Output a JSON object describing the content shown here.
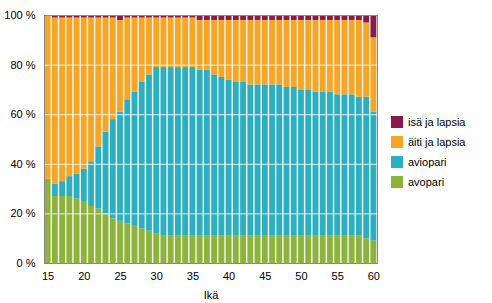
{
  "chart_data": {
    "type": "bar",
    "stacked": true,
    "xlabel": "Ikä",
    "x": [
      15,
      16,
      17,
      18,
      19,
      20,
      21,
      22,
      23,
      24,
      25,
      26,
      27,
      28,
      29,
      30,
      31,
      32,
      33,
      34,
      35,
      36,
      37,
      38,
      39,
      40,
      41,
      42,
      43,
      44,
      45,
      46,
      47,
      48,
      49,
      50,
      51,
      52,
      53,
      54,
      55,
      56,
      57,
      58,
      59,
      60
    ],
    "xlim": [
      14.5,
      60.5
    ],
    "xticks": [
      15,
      20,
      25,
      30,
      35,
      40,
      45,
      50,
      55,
      60
    ],
    "ylim": [
      0,
      100
    ],
    "yticks": [
      {
        "value": 0,
        "label": "0 %"
      },
      {
        "value": 20,
        "label": "20 %"
      },
      {
        "value": 40,
        "label": "40 %"
      },
      {
        "value": 60,
        "label": "60 %"
      },
      {
        "value": 80,
        "label": "80 %"
      },
      {
        "value": 100,
        "label": "100 %"
      }
    ],
    "grid": true,
    "legend": "right",
    "series": [
      {
        "name": "avopari",
        "color": "#8db33a",
        "values": [
          34,
          27,
          27,
          27,
          26,
          25,
          23,
          22,
          20,
          18,
          17,
          16,
          15,
          14,
          13,
          12,
          11,
          11,
          11,
          11,
          11,
          11,
          11,
          11,
          11,
          11,
          11,
          11,
          11,
          11,
          11,
          11,
          11,
          11,
          11,
          11,
          11,
          11,
          11,
          11,
          11,
          11,
          11,
          11,
          10,
          9
        ]
      },
      {
        "name": "aviopari",
        "color": "#2ab0c0",
        "values": [
          0,
          5,
          6,
          8,
          10,
          13,
          18,
          25,
          33,
          40,
          44,
          50,
          54,
          59,
          63,
          67,
          68,
          68,
          68,
          68,
          68,
          67,
          67,
          65,
          64,
          63,
          62,
          62,
          61,
          61,
          61,
          61,
          61,
          60,
          60,
          59,
          59,
          58,
          58,
          58,
          57,
          57,
          57,
          56,
          57,
          52
        ]
      },
      {
        "name": "äiti ja lapsia",
        "color": "#f5a623",
        "values": [
          66,
          67,
          66,
          64,
          63,
          61,
          58,
          52,
          46,
          41,
          37,
          33,
          30,
          26,
          23,
          20,
          20,
          20,
          20,
          20,
          20,
          20,
          20,
          22,
          23,
          24,
          25,
          25,
          26,
          26,
          26,
          26,
          26,
          27,
          27,
          28,
          28,
          29,
          29,
          29,
          30,
          30,
          30,
          31,
          30,
          30
        ]
      },
      {
        "name": "isä ja lapsia",
        "color": "#8b1a4a",
        "values": [
          0,
          1,
          1,
          1,
          1,
          1,
          1,
          1,
          1,
          1,
          2,
          1,
          1,
          1,
          1,
          1,
          1,
          1,
          1,
          1,
          1,
          2,
          2,
          2,
          2,
          2,
          2,
          2,
          2,
          2,
          2,
          2,
          2,
          2,
          2,
          2,
          2,
          2,
          2,
          2,
          2,
          2,
          2,
          2,
          3,
          9
        ]
      }
    ]
  }
}
